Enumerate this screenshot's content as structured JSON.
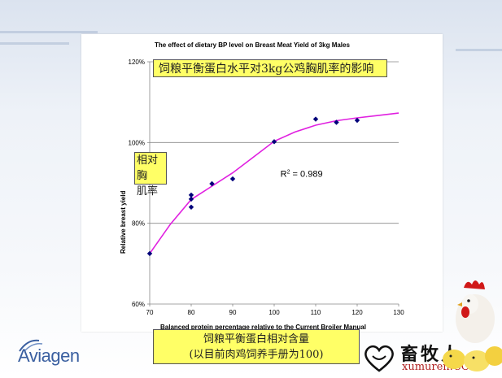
{
  "chart_data": {
    "type": "scatter",
    "title": "The effect of dietary BP level on Breast Meat Yield of 3kg Males",
    "xlabel": "Balanced protein percentage relative to the Current Broiler Manual",
    "ylabel": "Relative breast yield",
    "xlim": [
      70,
      130
    ],
    "ylim": [
      60,
      120
    ],
    "x_ticks": [
      "70",
      "80",
      "90",
      "100",
      "110",
      "120",
      "130"
    ],
    "y_ticks": [
      "60%",
      "80%",
      "100%",
      "120%"
    ],
    "gridlines_at": [
      80,
      100,
      120
    ],
    "points": [
      {
        "x": 70,
        "y": 72.5
      },
      {
        "x": 80,
        "y": 86
      },
      {
        "x": 80,
        "y": 87
      },
      {
        "x": 80,
        "y": 84
      },
      {
        "x": 85,
        "y": 89.8
      },
      {
        "x": 90,
        "y": 91
      },
      {
        "x": 100,
        "y": 100.2
      },
      {
        "x": 110,
        "y": 105.8
      },
      {
        "x": 115,
        "y": 105
      },
      {
        "x": 120,
        "y": 105.5
      }
    ],
    "trendline": {
      "x": [
        70,
        75,
        80,
        85,
        90,
        95,
        100,
        105,
        110,
        115,
        120,
        125,
        130
      ],
      "y": [
        72.5,
        79.8,
        85.9,
        89.2,
        92.5,
        96.4,
        100.3,
        102.6,
        104.3,
        105.4,
        106.1,
        106.7,
        107.3
      ]
    },
    "annotation": {
      "prefix": "R",
      "sup": "2",
      "suffix": " = 0.989"
    },
    "series_color": "#00007a",
    "trend_color": "#e020e0"
  },
  "overlays": {
    "title_cn": "饲粮平衡蛋白水平对3kg公鸡胸肌率的影响",
    "ylabel_cn_line1": "相对胸",
    "ylabel_cn_line2": "肌率",
    "xlabel_cn_line1": "饲粮平衡蛋白相对含量",
    "xlabel_cn_line2": "(以目前肉鸡饲养手册为100)"
  },
  "branding": {
    "aviagen": "Aviagen",
    "xumuren_cn": "畜牧人",
    "xumuren_url": "xumuren.COM"
  }
}
